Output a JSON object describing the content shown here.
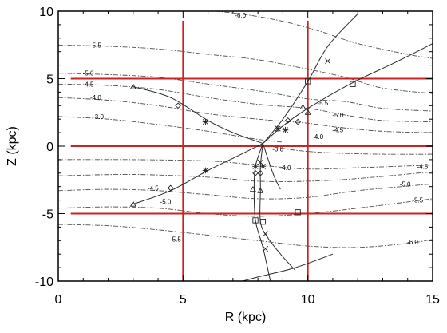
{
  "chart_data": {
    "type": "line",
    "xlabel": "R (kpc)",
    "ylabel": "Z (kpc)",
    "xlim": [
      0,
      15
    ],
    "ylim": [
      -10,
      10
    ],
    "xticks": [
      "0",
      "5",
      "10",
      "15"
    ],
    "yticks": [
      "-10",
      "-5",
      "0",
      "5",
      "10"
    ],
    "grid": false,
    "colors": {
      "axes": "#000000",
      "contours": "#4d4d4d",
      "reference_lines": "#cc2222",
      "curves": "#2a2a2a"
    },
    "reference_lines": {
      "vertical_x": [
        5,
        10
      ],
      "horizontal_y": [
        5,
        0,
        -5
      ],
      "vertical_extent": [
        -10,
        9.3
      ],
      "horizontal_extent": [
        0.5,
        15
      ]
    },
    "contours": [
      {
        "label": "-6.0",
        "label_at": [
          7.3,
          9.7
        ],
        "points": [
          [
            5.2,
            10.2
          ],
          [
            7.3,
            9.8
          ],
          [
            9,
            9.25
          ],
          [
            10.5,
            8.5
          ],
          [
            12,
            7.6
          ],
          [
            14,
            6.8
          ],
          [
            15,
            6.5
          ]
        ]
      },
      {
        "label": "-5.5",
        "label_at": [
          1.5,
          7.5
        ],
        "points": [
          [
            0,
            7.5
          ],
          [
            2,
            7.4
          ],
          [
            4,
            7.2
          ],
          [
            6,
            6.8
          ],
          [
            8,
            6.4
          ],
          [
            10,
            5.7
          ],
          [
            11.5,
            5.1
          ],
          [
            13,
            4.3
          ],
          [
            15,
            3.9
          ]
        ]
      },
      {
        "label": "-5.0",
        "label_at": [
          1.2,
          5.4
        ],
        "points": [
          [
            0,
            5.4
          ],
          [
            2,
            5.3
          ],
          [
            4,
            5.1
          ],
          [
            6,
            4.6
          ],
          [
            8,
            4.1
          ],
          [
            10,
            3.5
          ],
          [
            11.5,
            3.3
          ],
          [
            13,
            2.8
          ],
          [
            15,
            2.6
          ]
        ]
      },
      {
        "label": "-4.5",
        "label_at": [
          1.2,
          4.6
        ],
        "points": [
          [
            0,
            4.6
          ],
          [
            2,
            4.5
          ],
          [
            4,
            4.2
          ],
          [
            6,
            3.6
          ],
          [
            8,
            3.1
          ],
          [
            10,
            2.8
          ],
          [
            11.5,
            2.3
          ],
          [
            13,
            1.9
          ],
          [
            15,
            1.8
          ]
        ]
      },
      {
        "label": "-4.0",
        "label_at": [
          1.5,
          3.6
        ],
        "points": [
          [
            0,
            3.6
          ],
          [
            2,
            3.4
          ],
          [
            4,
            3.0
          ],
          [
            6,
            2.4
          ],
          [
            8,
            2.0
          ],
          [
            10,
            1.7
          ],
          [
            11.2,
            1.4
          ],
          [
            13,
            1.1
          ],
          [
            15,
            1.0
          ]
        ]
      },
      {
        "label": "-3.0",
        "label_at": [
          1.6,
          2.2
        ],
        "points": [
          [
            0,
            2.2
          ],
          [
            2,
            2.0
          ],
          [
            4,
            1.6
          ],
          [
            6,
            1.1
          ],
          [
            8,
            0.5
          ],
          [
            9,
            0.3
          ]
        ]
      },
      {
        "label": "-3.0",
        "label_at": [
          8.8,
          -0.2
        ],
        "points": [
          [
            8.2,
            0.1
          ],
          [
            9.5,
            -0.3
          ],
          [
            11,
            -0.5
          ],
          [
            13,
            -0.6
          ],
          [
            15,
            -0.6
          ]
        ]
      },
      {
        "label": "-4.0",
        "label_at": [
          9.1,
          -1.6
        ],
        "points": [
          [
            0,
            -1.0
          ],
          [
            3,
            -1.0
          ],
          [
            6,
            -1.1
          ],
          [
            8,
            -1.4
          ],
          [
            10,
            -1.7
          ],
          [
            12,
            -1.6
          ],
          [
            15,
            -1.4
          ]
        ]
      },
      {
        "label": "-4.5",
        "label_at": [
          14.6,
          -1.5
        ],
        "points": [
          [
            0,
            -2.2
          ],
          [
            3,
            -2.1
          ],
          [
            6,
            -2.3
          ],
          [
            8,
            -2.6
          ],
          [
            10,
            -2.6
          ],
          [
            12,
            -2.4
          ],
          [
            15,
            -1.9
          ]
        ]
      },
      {
        "label": "-5.0",
        "label_at": [
          13.9,
          -2.8
        ],
        "points": [
          [
            0,
            -3.3
          ],
          [
            2,
            -3.2
          ],
          [
            4,
            -3.3
          ],
          [
            6,
            -3.6
          ],
          [
            8,
            -3.9
          ],
          [
            10,
            -3.8
          ],
          [
            12,
            -3.3
          ],
          [
            15,
            -2.8
          ]
        ]
      },
      {
        "label": "-5.5",
        "label_at": [
          14.4,
          -4.0
        ],
        "points": [
          [
            0,
            -4.6
          ],
          [
            2,
            -4.5
          ],
          [
            4,
            -4.6
          ],
          [
            6,
            -5.0
          ],
          [
            8,
            -5.2
          ],
          [
            10,
            -5.0
          ],
          [
            12,
            -4.6
          ],
          [
            15,
            -3.9
          ]
        ]
      },
      {
        "label": "-6.0",
        "label_at": [
          14.2,
          -7.1
        ],
        "points": [
          [
            0,
            -5.8
          ],
          [
            2,
            -5.9
          ],
          [
            4,
            -6.2
          ],
          [
            6,
            -6.6
          ],
          [
            8,
            -7.0
          ],
          [
            10,
            -7.4
          ],
          [
            12,
            -7.5
          ],
          [
            14,
            -7.2
          ],
          [
            15,
            -6.9
          ]
        ]
      }
    ],
    "extra_contour_labels": [
      {
        "label": "-5.5",
        "at": [
          10.6,
          3.2
        ]
      },
      {
        "label": "-5.0",
        "at": [
          11.2,
          2.3
        ]
      },
      {
        "label": "-4.5",
        "at": [
          11.2,
          1.2
        ]
      },
      {
        "label": "-4.0",
        "at": [
          10.4,
          0.7
        ]
      },
      {
        "label": "-4.5",
        "at": [
          3.8,
          -3.1
        ]
      },
      {
        "label": "-5.0",
        "at": [
          4.3,
          -4.1
        ]
      },
      {
        "label": "-5.5",
        "at": [
          4.7,
          -6.9
        ]
      }
    ],
    "curves": [
      {
        "points": [
          [
            3.0,
            4.4
          ],
          [
            4.5,
            3.6
          ],
          [
            6.0,
            1.9
          ],
          [
            7.0,
            1.0
          ],
          [
            8.2,
            0.2
          ]
        ]
      },
      {
        "points": [
          [
            8.2,
            0.2
          ],
          [
            9.0,
            2.0
          ],
          [
            10.0,
            4.8
          ],
          [
            10.8,
            7.4
          ],
          [
            12.0,
            9.8
          ]
        ]
      },
      {
        "points": [
          [
            8.2,
            0.2
          ],
          [
            9.0,
            1.5
          ],
          [
            10.0,
            2.8
          ],
          [
            11.8,
            4.7
          ],
          [
            13.5,
            6.2
          ],
          [
            15.0,
            7.6
          ]
        ]
      },
      {
        "points": [
          [
            3.0,
            -4.3
          ],
          [
            4.5,
            -3.3
          ],
          [
            6.0,
            -1.8
          ],
          [
            7.0,
            -0.9
          ],
          [
            8.2,
            0.2
          ]
        ]
      },
      {
        "points": [
          [
            8.2,
            0.2
          ],
          [
            7.9,
            -1.5
          ],
          [
            7.85,
            -3.2
          ],
          [
            7.9,
            -5.5
          ],
          [
            8.2,
            -7.5
          ],
          [
            8.5,
            -10.0
          ]
        ]
      },
      {
        "points": [
          [
            8.2,
            0.2
          ],
          [
            8.1,
            -1.5
          ],
          [
            8.1,
            -3.2
          ],
          [
            8.1,
            -5.6
          ],
          [
            8.4,
            -6.8
          ],
          [
            9.0,
            -8.2
          ],
          [
            9.5,
            -9.2
          ]
        ]
      },
      {
        "points": [
          [
            8.2,
            0.2
          ],
          [
            8.6,
            -2.0
          ],
          [
            8.9,
            -3.2
          ]
        ]
      },
      {
        "points": [
          [
            7.0,
            -10.2
          ],
          [
            8.0,
            -9.7
          ],
          [
            9.5,
            -9.0
          ],
          [
            11,
            -8.0
          ]
        ]
      }
    ],
    "markers": [
      {
        "symbol": "triangle",
        "points": [
          [
            3.0,
            4.4
          ],
          [
            3.0,
            -4.3
          ],
          [
            9.8,
            2.9
          ],
          [
            10.0,
            2.5
          ],
          [
            7.8,
            -3.2
          ],
          [
            8.1,
            -3.3
          ]
        ]
      },
      {
        "symbol": "diamond",
        "points": [
          [
            4.8,
            3.0
          ],
          [
            4.5,
            -3.1
          ],
          [
            9.2,
            1.9
          ],
          [
            9.6,
            1.8
          ],
          [
            7.9,
            -2.0
          ],
          [
            8.1,
            -2.0
          ]
        ]
      },
      {
        "symbol": "star",
        "points": [
          [
            5.9,
            1.8
          ],
          [
            5.9,
            -1.8
          ],
          [
            8.8,
            1.3
          ],
          [
            9.1,
            1.2
          ],
          [
            7.9,
            -1.5
          ],
          [
            8.2,
            -1.5
          ]
        ]
      },
      {
        "symbol": "cross",
        "points": [
          [
            10.8,
            6.3
          ],
          [
            8.1,
            -1.2
          ],
          [
            8.3,
            -6.5
          ],
          [
            8.3,
            -7.6
          ]
        ]
      },
      {
        "symbol": "square",
        "points": [
          [
            10.0,
            4.8
          ],
          [
            11.8,
            4.6
          ],
          [
            9.6,
            -4.9
          ],
          [
            7.9,
            -5.5
          ],
          [
            8.2,
            -5.6
          ]
        ]
      }
    ]
  }
}
